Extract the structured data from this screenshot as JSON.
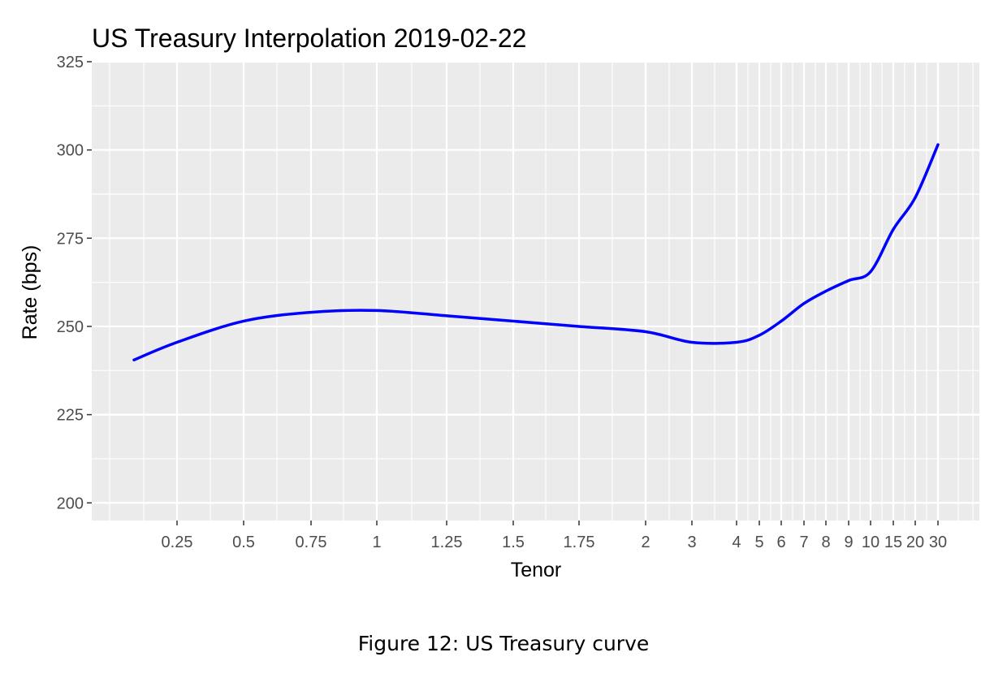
{
  "caption": "Figure 12: US Treasury curve",
  "chart_data": {
    "type": "line",
    "title": "US Treasury Interpolation 2019-02-22",
    "xlabel": "Tenor",
    "ylabel": "Rate (bps)",
    "ylim": [
      195,
      325
    ],
    "yticks": [
      200,
      225,
      250,
      275,
      300,
      325
    ],
    "xticks": [
      "0.25",
      "0.5",
      "0.75",
      "1",
      "1.25",
      "1.5",
      "1.75",
      "2",
      "3",
      "4",
      "5",
      "6",
      "7",
      "8",
      "9",
      "10",
      "15",
      "20",
      "30"
    ],
    "grid": true,
    "legend": "none",
    "line_color": "#0000ff",
    "series": [
      {
        "x": [
          "0.083",
          "0.25",
          "0.5",
          "0.75",
          "1",
          "1.25",
          "1.5",
          "1.75",
          "2",
          "3",
          "4",
          "5",
          "6",
          "7",
          "8",
          "9",
          "10",
          "15",
          "20",
          "30"
        ],
        "values": [
          240.5,
          245.5,
          251.5,
          254.0,
          254.5,
          253.0,
          251.5,
          250.0,
          248.5,
          245.5,
          245.5,
          247.5,
          251.5,
          256.5,
          260.0,
          263.0,
          265.5,
          277.5,
          286.5,
          301.5
        ]
      }
    ]
  }
}
